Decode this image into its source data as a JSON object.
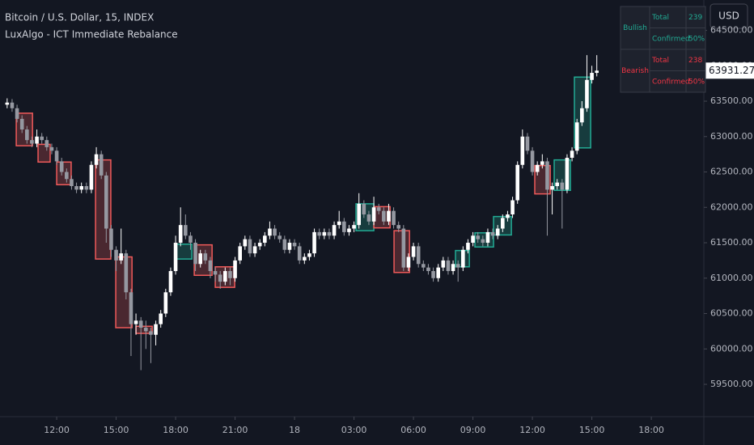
{
  "chart_data": {
    "type": "candlestick",
    "title": "Bitcoin / U.S. Dollar, 15, INDEX",
    "subtitle": "LuxAlgo - ICT Immediate Rebalance",
    "currency": "USD",
    "up_color": "#ffffff",
    "down_color": "#9598a1",
    "grid": false,
    "xlim": [
      9.14,
      44.65
    ],
    "ylim": [
      59043,
      64929
    ],
    "xticks": [
      {
        "value": 12,
        "label": "12:00"
      },
      {
        "value": 15,
        "label": "15:00"
      },
      {
        "value": 18,
        "label": "18:00"
      },
      {
        "value": 21,
        "label": "21:00"
      },
      {
        "value": 24,
        "label": "18"
      },
      {
        "value": 27,
        "label": "03:00"
      },
      {
        "value": 30,
        "label": "06:00"
      },
      {
        "value": 33,
        "label": "09:00"
      },
      {
        "value": 36,
        "label": "12:00"
      },
      {
        "value": 39,
        "label": "15:00"
      },
      {
        "value": 42,
        "label": "18:00"
      }
    ],
    "yticks": [
      {
        "value": 59500,
        "label": "59500.00"
      },
      {
        "value": 60000,
        "label": "60000.00"
      },
      {
        "value": 60500,
        "label": "60500.00"
      },
      {
        "value": 61000,
        "label": "61000.00"
      },
      {
        "value": 61500,
        "label": "61500.00"
      },
      {
        "value": 62000,
        "label": "62000.00"
      },
      {
        "value": 62500,
        "label": "62500.00"
      },
      {
        "value": 63000,
        "label": "63000.00"
      },
      {
        "value": 63500,
        "label": "63500.00"
      },
      {
        "value": 64000,
        "label": "64000.00"
      },
      {
        "value": 64500,
        "label": "64500.00"
      }
    ],
    "x": [
      9.5,
      9.75,
      10,
      10.25,
      10.5,
      10.75,
      11,
      11.25,
      11.5,
      11.75,
      12,
      12.25,
      12.5,
      12.75,
      13,
      13.25,
      13.5,
      13.75,
      14,
      14.25,
      14.5,
      14.75,
      15,
      15.25,
      15.5,
      15.75,
      16,
      16.25,
      16.5,
      16.75,
      17,
      17.25,
      17.5,
      17.75,
      18,
      18.25,
      18.5,
      18.75,
      19,
      19.25,
      19.5,
      19.75,
      20,
      20.25,
      20.5,
      20.75,
      21,
      21.25,
      21.5,
      21.75,
      22,
      22.25,
      22.5,
      22.75,
      23,
      23.25,
      23.5,
      23.75,
      24,
      24.25,
      24.5,
      24.75,
      25,
      25.25,
      25.5,
      25.75,
      26,
      26.25,
      26.5,
      26.75,
      27,
      27.25,
      27.5,
      27.75,
      28,
      28.25,
      28.5,
      28.75,
      29,
      29.25,
      29.5,
      29.75,
      30,
      30.25,
      30.5,
      30.75,
      31,
      31.25,
      31.5,
      31.75,
      32,
      32.25,
      32.5,
      32.75,
      33,
      33.25,
      33.5,
      33.75,
      34,
      34.25,
      34.5,
      34.75,
      35,
      35.25,
      35.5,
      35.75,
      36,
      36.25,
      36.5,
      36.75,
      37,
      37.25,
      37.5,
      37.75,
      38,
      38.25,
      38.5,
      38.75,
      39,
      39.25
    ],
    "open": [
      63450,
      63480,
      63400,
      63250,
      63100,
      62950,
      62900,
      63000,
      62950,
      62850,
      62800,
      62650,
      62500,
      62400,
      62300,
      62250,
      62300,
      62250,
      62600,
      62750,
      62450,
      61700,
      61400,
      61250,
      61350,
      60800,
      60350,
      60400,
      60300,
      60250,
      60200,
      60350,
      60500,
      60800,
      61100,
      61500,
      61750,
      61600,
      61500,
      61200,
      61350,
      61250,
      61100,
      61050,
      60950,
      61100,
      61000,
      61250,
      61450,
      61550,
      61350,
      61450,
      61500,
      61600,
      61700,
      61600,
      61550,
      61400,
      61500,
      61450,
      61250,
      61300,
      61350,
      61650,
      61600,
      61650,
      61600,
      61750,
      61800,
      61650,
      61700,
      61750,
      62050,
      61900,
      61800,
      62000,
      61950,
      61800,
      61950,
      61750,
      61700,
      61150,
      61300,
      61450,
      61200,
      61150,
      61100,
      61000,
      61150,
      61250,
      61100,
      61200,
      61150,
      61400,
      61500,
      61600,
      61550,
      61500,
      61650,
      61600,
      61700,
      61850,
      61900,
      62100,
      62600,
      63000,
      62800,
      62500,
      62600,
      62650,
      62250,
      62300,
      62350,
      62250,
      62700,
      62800,
      63200,
      63400,
      63800,
      63900
    ],
    "high": [
      63540,
      63530,
      63450,
      63300,
      63150,
      63000,
      63100,
      63050,
      63000,
      62900,
      62850,
      62700,
      62550,
      62450,
      62350,
      62350,
      62350,
      62650,
      62850,
      62800,
      62500,
      61750,
      61450,
      61700,
      61400,
      60850,
      60500,
      60450,
      60400,
      60300,
      60400,
      60550,
      60850,
      61150,
      61600,
      62000,
      61900,
      61650,
      61550,
      61400,
      61400,
      61300,
      61150,
      61100,
      61150,
      61150,
      61300,
      61500,
      61600,
      61600,
      61500,
      61550,
      61650,
      61800,
      61750,
      61650,
      61600,
      61550,
      61550,
      61500,
      61350,
      61400,
      61700,
      61700,
      61700,
      61700,
      61800,
      61950,
      61850,
      61750,
      61800,
      62200,
      62100,
      61950,
      62150,
      62050,
      62000,
      62050,
      62000,
      61800,
      61750,
      61350,
      61500,
      61500,
      61250,
      61200,
      61150,
      61200,
      61300,
      61300,
      61250,
      61250,
      61450,
      61550,
      61650,
      61650,
      61600,
      61700,
      61700,
      61750,
      61900,
      61950,
      62150,
      62650,
      63100,
      63050,
      62850,
      62650,
      62750,
      62700,
      62350,
      62400,
      62400,
      62750,
      62850,
      63250,
      63500,
      64150,
      64000,
      64150
    ],
    "low": [
      63400,
      63350,
      63200,
      63050,
      62900,
      62850,
      62850,
      62900,
      62800,
      62750,
      62600,
      62450,
      62350,
      62250,
      62200,
      62200,
      62200,
      62200,
      62550,
      62400,
      61500,
      61300,
      61100,
      61200,
      60700,
      59900,
      60200,
      59700,
      60000,
      59800,
      60050,
      60300,
      60450,
      60750,
      61050,
      61450,
      61550,
      61400,
      61100,
      61150,
      61200,
      61000,
      60950,
      60850,
      60900,
      60900,
      60950,
      61200,
      61400,
      61300,
      61300,
      61400,
      61450,
      61550,
      61550,
      61500,
      61350,
      61350,
      61400,
      61200,
      61200,
      61250,
      61300,
      61550,
      61550,
      61550,
      61550,
      61700,
      61600,
      61600,
      61650,
      61700,
      61850,
      61750,
      61750,
      61900,
      61750,
      61750,
      61700,
      61650,
      61100,
      61100,
      61250,
      61150,
      61100,
      61050,
      60950,
      60950,
      61100,
      61050,
      61050,
      60950,
      61100,
      61350,
      61450,
      61500,
      61450,
      61450,
      61550,
      61550,
      61650,
      61800,
      61850,
      62050,
      62550,
      62750,
      62450,
      62450,
      62550,
      61600,
      61900,
      62250,
      61700,
      62200,
      62650,
      62750,
      63150,
      63350,
      63750,
      63850
    ],
    "close": [
      63480,
      63400,
      63250,
      63100,
      62950,
      62900,
      63000,
      62950,
      62850,
      62800,
      62650,
      62500,
      62400,
      62300,
      62250,
      62300,
      62250,
      62600,
      62750,
      62450,
      61700,
      61400,
      61250,
      61350,
      60800,
      60350,
      60400,
      60300,
      60250,
      60200,
      60350,
      60500,
      60800,
      61100,
      61500,
      61750,
      61600,
      61500,
      61200,
      61350,
      61250,
      61100,
      61050,
      60950,
      61100,
      61000,
      61250,
      61450,
      61550,
      61350,
      61450,
      61500,
      61600,
      61700,
      61600,
      61550,
      61400,
      61500,
      61450,
      61250,
      61300,
      61350,
      61650,
      61600,
      61650,
      61600,
      61750,
      61800,
      61650,
      61700,
      61750,
      62050,
      61900,
      61800,
      62000,
      61950,
      61800,
      61950,
      61750,
      61700,
      61150,
      61300,
      61450,
      61200,
      61150,
      61100,
      61000,
      61150,
      61250,
      61100,
      61200,
      61150,
      61400,
      61500,
      61600,
      61550,
      61500,
      61650,
      61600,
      61700,
      61850,
      61900,
      62100,
      62600,
      63000,
      62800,
      62500,
      62600,
      62650,
      62250,
      62300,
      62350,
      62250,
      62700,
      62800,
      63200,
      63400,
      63800,
      63900,
      63931.27
    ],
    "zones": [
      {
        "x0": 9.96,
        "x1": 10.78,
        "top": 63330,
        "bottom": 62870,
        "color": "#f05a5a"
      },
      {
        "x0": 11.06,
        "x1": 11.67,
        "top": 62890,
        "bottom": 62640,
        "color": "#f05a5a"
      },
      {
        "x0": 12,
        "x1": 12.73,
        "top": 62640,
        "bottom": 62320,
        "color": "#f05a5a"
      },
      {
        "x0": 13.96,
        "x1": 14.73,
        "top": 62670,
        "bottom": 61270,
        "color": "#f05a5a"
      },
      {
        "x0": 14.98,
        "x1": 15.8,
        "top": 61300,
        "bottom": 60300,
        "color": "#f05a5a"
      },
      {
        "x0": 16,
        "x1": 16.82,
        "top": 60320,
        "bottom": 60220,
        "color": "#f05a5a"
      },
      {
        "x0": 17.96,
        "x1": 18.82,
        "top": 61480,
        "bottom": 61270,
        "color": "#22ab94"
      },
      {
        "x0": 18.94,
        "x1": 19.84,
        "top": 61470,
        "bottom": 61040,
        "color": "#f05a5a"
      },
      {
        "x0": 20,
        "x1": 20.98,
        "top": 61160,
        "bottom": 60870,
        "color": "#f05a5a"
      },
      {
        "x0": 27.1,
        "x1": 28,
        "top": 62050,
        "bottom": 61670,
        "color": "#22ab94"
      },
      {
        "x0": 28,
        "x1": 28.82,
        "top": 62010,
        "bottom": 61710,
        "color": "#f05a5a"
      },
      {
        "x0": 29.02,
        "x1": 29.8,
        "top": 61670,
        "bottom": 61080,
        "color": "#f05a5a"
      },
      {
        "x0": 32.12,
        "x1": 32.82,
        "top": 61390,
        "bottom": 61160,
        "color": "#22ab94"
      },
      {
        "x0": 33.1,
        "x1": 34.04,
        "top": 61640,
        "bottom": 61440,
        "color": "#22ab94"
      },
      {
        "x0": 34.04,
        "x1": 34.94,
        "top": 61870,
        "bottom": 61610,
        "color": "#22ab94"
      },
      {
        "x0": 36.12,
        "x1": 36.9,
        "top": 62590,
        "bottom": 62190,
        "color": "#f05a5a"
      },
      {
        "x0": 37.1,
        "x1": 37.92,
        "top": 62670,
        "bottom": 62240,
        "color": "#22ab94"
      },
      {
        "x0": 38.12,
        "x1": 38.94,
        "top": 63840,
        "bottom": 62840,
        "color": "#22ab94"
      }
    ],
    "stats": [
      {
        "label": "Bullish",
        "color": "#22ab94",
        "rows": [
          {
            "name": "Total",
            "value": 239
          },
          {
            "name": "Confirmed",
            "value": 50,
            "value_label": "50%"
          }
        ]
      },
      {
        "label": "Bearish",
        "color": "#f23645",
        "rows": [
          {
            "name": "Total",
            "value": 238
          },
          {
            "name": "Confirmed",
            "value": 50,
            "value_label": "50%"
          }
        ]
      }
    ]
  }
}
